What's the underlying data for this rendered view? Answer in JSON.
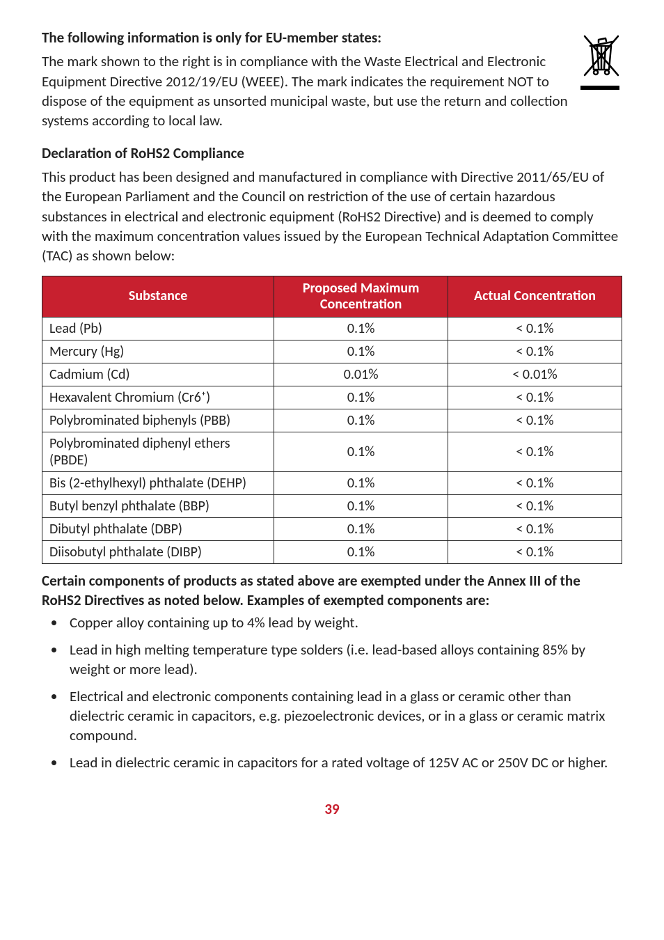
{
  "colors": {
    "header_bg": "#c8202f",
    "header_fg": "#ffffff",
    "text": "#222222",
    "border": "#222222",
    "page_num": "#c8202f",
    "background": "#ffffff"
  },
  "typography": {
    "body_fontsize_pt": 16,
    "body_lineheight": 1.35,
    "font_family": "Calibri"
  },
  "section1": {
    "heading": "The following information is only for EU-member states:",
    "body": "The mark shown to the right is in compliance with the Waste Electrical and Electronic Equipment Directive 2012/19/EU (WEEE). The mark indicates the requirement NOT to dispose of the equipment as unsorted municipal waste, but use the return and collection systems according to local law."
  },
  "section2": {
    "heading": "Declaration of RoHS2 Compliance",
    "body": "This product has been designed and manufactured in compliance with Directive 2011/65/EU of the European Parliament and the Council on restriction of the use of certain hazardous substances in electrical and electronic equipment (RoHS2 Directive) and is deemed to comply with the maximum concentration values issued by the European Technical Adaptation Committee (TAC) as shown below:"
  },
  "table": {
    "col_widths_pct": [
      40,
      30,
      30
    ],
    "headers": {
      "c1": "Substance",
      "c2_line1": "Proposed Maximum",
      "c2_line2": "Concentration",
      "c3": "Actual Concentration"
    },
    "rows": [
      {
        "substance": "Lead (Pb)",
        "proposed": "0.1%",
        "actual": "< 0.1%"
      },
      {
        "substance": "Mercury (Hg)",
        "proposed": "0.1%",
        "actual": "< 0.1%"
      },
      {
        "substance": "Cadmium (Cd)",
        "proposed": "0.01%",
        "actual": "< 0.01%"
      },
      {
        "substance": "Hexavalent Chromium (Cr6⁺)",
        "proposed": "0.1%",
        "actual": "< 0.1%"
      },
      {
        "substance": "Polybrominated biphenyls (PBB)",
        "proposed": "0.1%",
        "actual": "< 0.1%"
      },
      {
        "substance": "Polybrominated diphenyl ethers (PBDE)",
        "proposed": "0.1%",
        "actual": "< 0.1%"
      },
      {
        "substance": "Bis (2-ethylhexyl) phthalate (DEHP)",
        "proposed": "0.1%",
        "actual": "< 0.1%"
      },
      {
        "substance": "Butyl benzyl phthalate (BBP)",
        "proposed": "0.1%",
        "actual": "< 0.1%"
      },
      {
        "substance": "Dibutyl phthalate (DBP)",
        "proposed": "0.1%",
        "actual": "< 0.1%"
      },
      {
        "substance": "Diisobutyl phthalate (DIBP)",
        "proposed": "0.1%",
        "actual": "< 0.1%"
      }
    ]
  },
  "section3": {
    "heading": "Certain components of products as stated above are exempted under the Annex III of the RoHS2 Directives as noted below. Examples of exempted components are:",
    "bullets": [
      "Copper alloy containing up to 4% lead by weight.",
      "Lead in high melting temperature type solders (i.e. lead-based alloys containing 85% by weight or more lead).",
      "Electrical and electronic components containing lead in a glass or ceramic other than dielectric ceramic in capacitors, e.g. piezoelectronic devices, or in a glass or ceramic matrix compound.",
      "Lead in dielectric ceramic in capacitors for a rated voltage of 125V AC or 250V DC or higher."
    ]
  },
  "page_number": "39"
}
